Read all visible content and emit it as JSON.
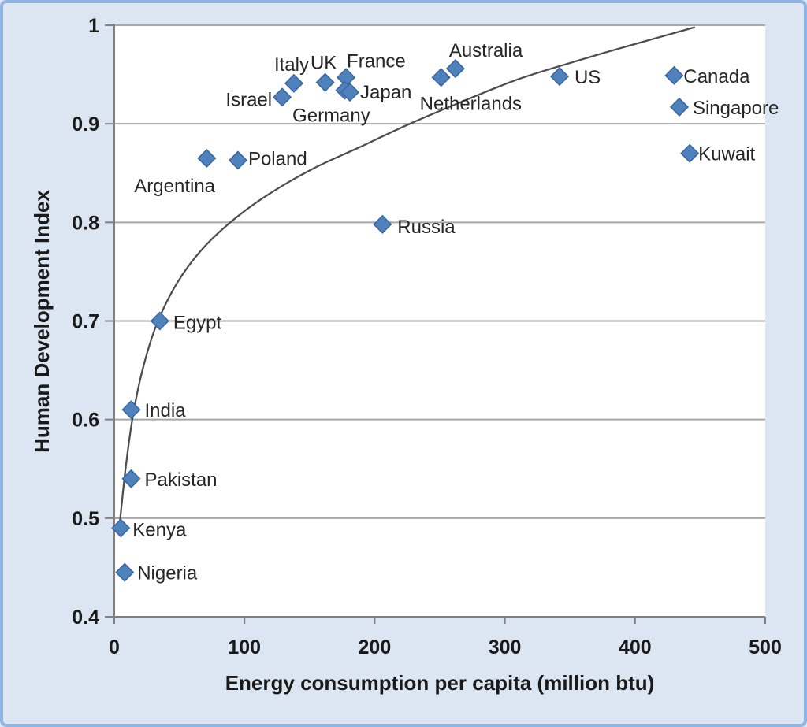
{
  "figure": {
    "background_color": "#dce6f2",
    "frame_border_color": "#8eb4e3",
    "plot_background_color": "#ffffff",
    "gridline_color": "#a6a6a6",
    "axis_color": "#808080",
    "text_color": "#262626",
    "marker_fill": "#4f81bd",
    "marker_stroke": "#3a679c",
    "trendline_color": "#4d4d4d"
  },
  "chart_data": {
    "type": "scatter",
    "title": "",
    "xlabel": "Energy consumption per capita (million btu)",
    "ylabel": "Human Development Index",
    "xlim": [
      0,
      500
    ],
    "ylim": [
      0.4,
      1.0
    ],
    "x_ticks": [
      0,
      100,
      200,
      300,
      400,
      500
    ],
    "x_tick_labels": [
      "0",
      "100",
      "200",
      "300",
      "400",
      "500"
    ],
    "y_ticks": [
      0.4,
      0.5,
      0.6,
      0.7,
      0.8,
      0.9,
      1.0
    ],
    "y_tick_labels": [
      "0.4",
      "0.5",
      "0.6",
      "0.7",
      "0.8",
      "0.9",
      "1"
    ],
    "grid": "horizontal",
    "legend": "none",
    "marker": "diamond",
    "points": [
      {
        "label": "Nigeria",
        "x": 8,
        "y": 0.445,
        "label_anchor": "start",
        "label_offset": [
          16,
          9
        ]
      },
      {
        "label": "Kenya",
        "x": 5,
        "y": 0.49,
        "label_anchor": "start",
        "label_offset": [
          15,
          10
        ]
      },
      {
        "label": "Pakistan",
        "x": 13,
        "y": 0.54,
        "label_anchor": "start",
        "label_offset": [
          17,
          9
        ]
      },
      {
        "label": "India",
        "x": 13,
        "y": 0.61,
        "label_anchor": "start",
        "label_offset": [
          17,
          9
        ]
      },
      {
        "label": "Egypt",
        "x": 35,
        "y": 0.7,
        "label_anchor": "start",
        "label_offset": [
          17,
          10
        ]
      },
      {
        "label": "Argentina",
        "x": 71,
        "y": 0.865,
        "label_anchor": "start",
        "label_offset": [
          -92,
          43
        ]
      },
      {
        "label": "Poland",
        "x": 95,
        "y": 0.863,
        "label_anchor": "start",
        "label_offset": [
          13,
          6
        ]
      },
      {
        "label": "Russia",
        "x": 206,
        "y": 0.798,
        "label_anchor": "start",
        "label_offset": [
          19,
          11
        ]
      },
      {
        "label": "Israel",
        "x": 129,
        "y": 0.927,
        "label_anchor": "end",
        "label_offset": [
          -13,
          11
        ]
      },
      {
        "label": "Italy",
        "x": 138,
        "y": 0.941,
        "label_anchor": "end",
        "label_offset": [
          19,
          -16
        ]
      },
      {
        "label": "UK",
        "x": 162,
        "y": 0.942,
        "label_anchor": "middle",
        "label_offset": [
          -2,
          -17
        ]
      },
      {
        "label": "France",
        "x": 178,
        "y": 0.947,
        "label_anchor": "start",
        "label_offset": [
          1,
          -13
        ]
      },
      {
        "label": "Germany",
        "x": 177,
        "y": 0.934,
        "label_anchor": "middle",
        "label_offset": [
          -17,
          40
        ]
      },
      {
        "label": "Japan",
        "x": 181,
        "y": 0.932,
        "label_anchor": "start",
        "label_offset": [
          13,
          8
        ]
      },
      {
        "label": "Netherlands",
        "x": 251,
        "y": 0.947,
        "label_anchor": "start",
        "label_offset": [
          -27,
          41
        ]
      },
      {
        "label": "Australia",
        "x": 262,
        "y": 0.956,
        "label_anchor": "start",
        "label_offset": [
          -8,
          -15
        ]
      },
      {
        "label": "US",
        "x": 342,
        "y": 0.948,
        "label_anchor": "start",
        "label_offset": [
          19,
          9
        ]
      },
      {
        "label": "Canada",
        "x": 430,
        "y": 0.949,
        "label_anchor": "start",
        "label_offset": [
          12,
          9
        ]
      },
      {
        "label": "Singapore",
        "x": 434,
        "y": 0.917,
        "label_anchor": "start",
        "label_offset": [
          17,
          9
        ]
      },
      {
        "label": "Kuwait",
        "x": 442,
        "y": 0.87,
        "label_anchor": "start",
        "label_offset": [
          11,
          9
        ]
      }
    ],
    "trendline": {
      "shape": "logarithmic",
      "points": [
        [
          4,
          0.492
        ],
        [
          9,
          0.554
        ],
        [
          15,
          0.609
        ],
        [
          23,
          0.657
        ],
        [
          33,
          0.698
        ],
        [
          48,
          0.738
        ],
        [
          67,
          0.772
        ],
        [
          91,
          0.802
        ],
        [
          118,
          0.828
        ],
        [
          152,
          0.854
        ],
        [
          188,
          0.876
        ],
        [
          227,
          0.9
        ],
        [
          270,
          0.924
        ],
        [
          312,
          0.946
        ],
        [
          361,
          0.966
        ],
        [
          403,
          0.982
        ],
        [
          446,
          0.998
        ]
      ]
    }
  }
}
